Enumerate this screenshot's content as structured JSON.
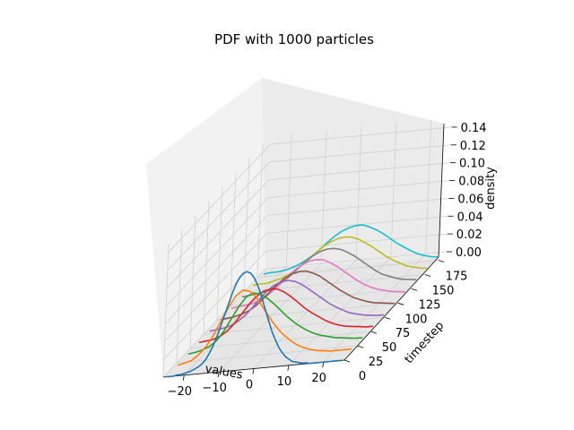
{
  "chart_data": {
    "type": "line3d",
    "title": "PDF with 1000 particles",
    "xlabel": "values",
    "ylabel": "timestep",
    "zlabel": "density",
    "xlim": [
      -26,
      26
    ],
    "ylim": [
      0,
      190
    ],
    "zlim": [
      0,
      0.15
    ],
    "x_ticks": [
      "−20",
      "−10",
      "0",
      "10",
      "20"
    ],
    "y_ticks": [
      "0",
      "25",
      "50",
      "75",
      "100",
      "125",
      "150",
      "175"
    ],
    "z_ticks": [
      "0.00",
      "0.02",
      "0.04",
      "0.06",
      "0.08",
      "0.10",
      "0.12",
      "0.14"
    ],
    "grid": true,
    "colors": [
      "#1f77b4",
      "#ff7f0e",
      "#2ca02c",
      "#d62728",
      "#9467bd",
      "#8c564b",
      "#e377c2",
      "#7f7f7f",
      "#bcbd22",
      "#17becf"
    ],
    "series": [
      {
        "timestep": 0,
        "x": [
          -25,
          -24,
          -23,
          -22,
          -21,
          -20,
          -19,
          -18,
          -17,
          -16,
          -15,
          -14,
          -13,
          -12,
          -11,
          -10,
          -9,
          -8,
          -7,
          -6,
          -5,
          -4,
          -3,
          -2,
          -1,
          0,
          1,
          2,
          3,
          4,
          5,
          6,
          7,
          8,
          9,
          10,
          11,
          12,
          13,
          14,
          15,
          16,
          17,
          18,
          19,
          20,
          21,
          22,
          23,
          24,
          25
        ],
        "y": [
          0.0,
          0.0,
          0.0,
          0.001,
          0.001,
          0.002,
          0.003,
          0.004,
          0.006,
          0.008,
          0.011,
          0.015,
          0.022,
          0.03,
          0.04,
          0.052,
          0.064,
          0.076,
          0.088,
          0.098,
          0.105,
          0.109,
          0.11,
          0.108,
          0.103,
          0.095,
          0.085,
          0.073,
          0.061,
          0.049,
          0.038,
          0.029,
          0.021,
          0.015,
          0.01,
          0.007,
          0.004,
          0.003,
          0.002,
          0.001,
          0.001,
          0.0,
          0.0,
          0.0,
          0.0,
          0.0,
          0.0,
          0.0,
          0.0,
          0.0,
          0.0
        ]
      },
      {
        "timestep": 20,
        "x": [
          -25,
          -23,
          -21,
          -19,
          -17,
          -15,
          -13,
          -11,
          -9,
          -7,
          -5,
          -3,
          -1,
          1,
          3,
          5,
          7,
          9,
          11,
          13,
          15,
          17,
          19,
          21,
          23,
          25
        ],
        "y": [
          0.0,
          0.002,
          0.004,
          0.01,
          0.018,
          0.03,
          0.045,
          0.06,
          0.072,
          0.078,
          0.076,
          0.068,
          0.056,
          0.044,
          0.033,
          0.024,
          0.017,
          0.011,
          0.007,
          0.004,
          0.002,
          0.001,
          0.0,
          0.0,
          0.0,
          0.0
        ]
      },
      {
        "timestep": 40,
        "x": [
          -25,
          -23,
          -21,
          -19,
          -17,
          -15,
          -13,
          -11,
          -9,
          -7,
          -5,
          -3,
          -1,
          1,
          3,
          5,
          7,
          9,
          11,
          13,
          15,
          17,
          19,
          21,
          23,
          25
        ],
        "y": [
          0.0,
          0.001,
          0.003,
          0.006,
          0.012,
          0.022,
          0.035,
          0.048,
          0.058,
          0.062,
          0.06,
          0.055,
          0.048,
          0.04,
          0.032,
          0.025,
          0.019,
          0.014,
          0.01,
          0.007,
          0.005,
          0.003,
          0.002,
          0.001,
          0.0,
          0.0
        ]
      },
      {
        "timestep": 60,
        "x": [
          -25,
          -23,
          -21,
          -19,
          -17,
          -15,
          -13,
          -11,
          -9,
          -7,
          -5,
          -3,
          -1,
          1,
          3,
          5,
          7,
          9,
          11,
          13,
          15,
          17,
          19,
          21,
          23,
          25
        ],
        "y": [
          0.0,
          0.001,
          0.002,
          0.005,
          0.01,
          0.018,
          0.028,
          0.038,
          0.046,
          0.051,
          0.053,
          0.052,
          0.048,
          0.042,
          0.035,
          0.028,
          0.022,
          0.017,
          0.012,
          0.008,
          0.005,
          0.003,
          0.002,
          0.001,
          0.0,
          0.0
        ]
      },
      {
        "timestep": 80,
        "x": [
          -25,
          -23,
          -21,
          -19,
          -17,
          -15,
          -13,
          -11,
          -9,
          -7,
          -5,
          -3,
          -1,
          1,
          3,
          5,
          7,
          9,
          11,
          13,
          15,
          17,
          19,
          21,
          23,
          25
        ],
        "y": [
          0.0,
          0.001,
          0.002,
          0.004,
          0.008,
          0.014,
          0.022,
          0.031,
          0.039,
          0.045,
          0.048,
          0.049,
          0.047,
          0.043,
          0.037,
          0.031,
          0.025,
          0.019,
          0.014,
          0.01,
          0.006,
          0.004,
          0.002,
          0.001,
          0.0,
          0.0
        ]
      },
      {
        "timestep": 100,
        "x": [
          -25,
          -23,
          -21,
          -19,
          -17,
          -15,
          -13,
          -11,
          -9,
          -7,
          -5,
          -3,
          -1,
          1,
          3,
          5,
          7,
          9,
          11,
          13,
          15,
          17,
          19,
          21,
          23,
          25
        ],
        "y": [
          0.0,
          0.001,
          0.002,
          0.004,
          0.007,
          0.012,
          0.019,
          0.027,
          0.034,
          0.04,
          0.044,
          0.046,
          0.046,
          0.043,
          0.039,
          0.033,
          0.027,
          0.021,
          0.016,
          0.011,
          0.008,
          0.005,
          0.003,
          0.002,
          0.001,
          0.0
        ]
      },
      {
        "timestep": 120,
        "x": [
          -25,
          -23,
          -21,
          -19,
          -17,
          -15,
          -13,
          -11,
          -9,
          -7,
          -5,
          -3,
          -1,
          1,
          3,
          5,
          7,
          9,
          11,
          13,
          15,
          17,
          19,
          21,
          23,
          25
        ],
        "y": [
          0.0,
          0.001,
          0.002,
          0.003,
          0.006,
          0.01,
          0.016,
          0.023,
          0.03,
          0.037,
          0.042,
          0.045,
          0.046,
          0.045,
          0.041,
          0.036,
          0.03,
          0.024,
          0.018,
          0.013,
          0.009,
          0.006,
          0.004,
          0.002,
          0.001,
          0.0
        ]
      },
      {
        "timestep": 140,
        "x": [
          -25,
          -23,
          -21,
          -19,
          -17,
          -15,
          -13,
          -11,
          -9,
          -7,
          -5,
          -3,
          -1,
          1,
          3,
          5,
          7,
          9,
          11,
          13,
          15,
          17,
          19,
          21,
          23,
          25
        ],
        "y": [
          0.0,
          0.001,
          0.002,
          0.003,
          0.005,
          0.009,
          0.014,
          0.02,
          0.027,
          0.034,
          0.039,
          0.043,
          0.045,
          0.045,
          0.043,
          0.039,
          0.034,
          0.028,
          0.022,
          0.016,
          0.011,
          0.008,
          0.005,
          0.003,
          0.002,
          0.001
        ]
      },
      {
        "timestep": 160,
        "x": [
          -25,
          -23,
          -21,
          -19,
          -17,
          -15,
          -13,
          -11,
          -9,
          -7,
          -5,
          -3,
          -1,
          1,
          3,
          5,
          7,
          9,
          11,
          13,
          15,
          17,
          19,
          21,
          23,
          25
        ],
        "y": [
          0.0,
          0.001,
          0.001,
          0.003,
          0.005,
          0.008,
          0.012,
          0.018,
          0.024,
          0.031,
          0.037,
          0.041,
          0.044,
          0.045,
          0.044,
          0.041,
          0.036,
          0.031,
          0.025,
          0.019,
          0.014,
          0.01,
          0.006,
          0.004,
          0.002,
          0.001
        ]
      },
      {
        "timestep": 180,
        "x": [
          -25,
          -23,
          -21,
          -19,
          -17,
          -15,
          -13,
          -11,
          -9,
          -7,
          -5,
          -3,
          -1,
          1,
          3,
          5,
          7,
          9,
          11,
          13,
          15,
          17,
          19,
          21,
          23,
          25
        ],
        "y": [
          0.0,
          0.001,
          0.001,
          0.002,
          0.004,
          0.007,
          0.011,
          0.016,
          0.022,
          0.029,
          0.035,
          0.04,
          0.043,
          0.045,
          0.045,
          0.042,
          0.038,
          0.033,
          0.027,
          0.021,
          0.016,
          0.011,
          0.007,
          0.004,
          0.002,
          0.001
        ]
      }
    ]
  }
}
